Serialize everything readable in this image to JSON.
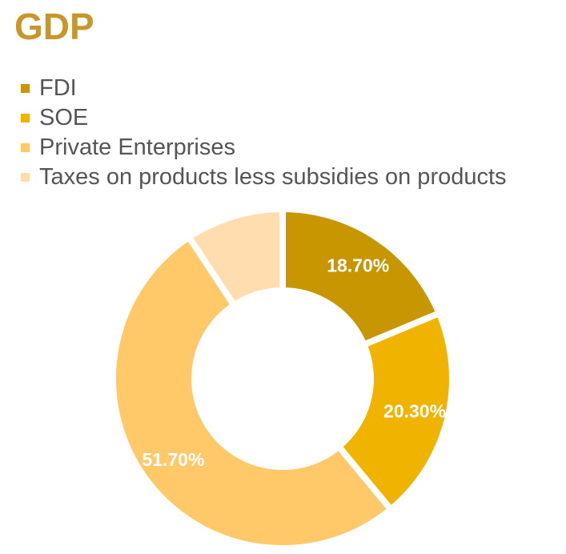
{
  "title": "GDP",
  "chart_data": {
    "type": "pie",
    "title": "GDP",
    "donut": true,
    "legend_position": "top-left",
    "series": [
      {
        "name": "FDI",
        "value": 18.7,
        "label": "18.70%",
        "color": "#C89600"
      },
      {
        "name": "SOE",
        "value": 20.3,
        "label": "20.30%",
        "color": "#EFB300"
      },
      {
        "name": "Private Enterprises",
        "value": 51.7,
        "label": "51.70%",
        "color": "#FFC96A"
      },
      {
        "name": "Taxes on products less subsidies on products",
        "value": 9.3,
        "label": "",
        "color": "#FFDDAE"
      }
    ]
  }
}
